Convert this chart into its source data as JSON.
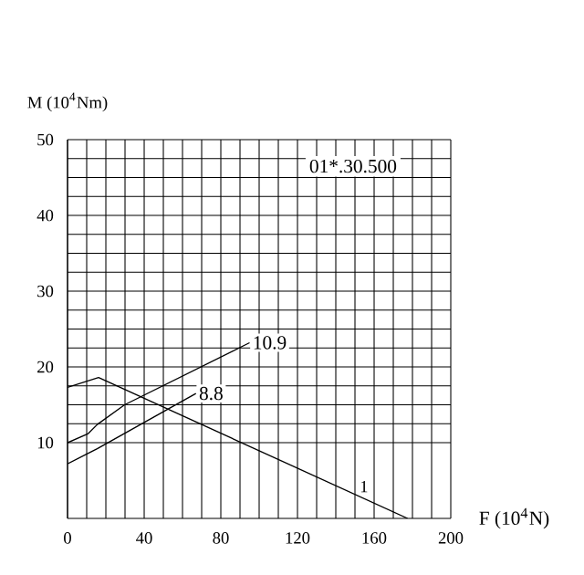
{
  "chart_data": {
    "type": "line",
    "xlabel": "F (10$^{4}$N)",
    "ylabel": "M (10$^{4}$Nm)",
    "annotations": [
      "01*.30.500"
    ],
    "xlim": [
      0,
      200
    ],
    "ylim": [
      0,
      50
    ],
    "xticks": [
      0,
      40,
      80,
      120,
      160,
      200
    ],
    "yticks": [
      10,
      20,
      30,
      40,
      50
    ],
    "grid": true,
    "legend": false,
    "marker": "none",
    "line_style": "solid",
    "series": [
      {
        "name": "10.9",
        "color": "#000000",
        "x": [
          0,
          10.8,
          15.5,
          29.8,
          95
        ],
        "values": [
          10,
          11.2,
          12.4,
          15.0,
          23.2
        ]
      },
      {
        "name": "8.8",
        "color": "#000000",
        "x": [
          0,
          10.8,
          15.5,
          67
        ],
        "values": [
          7.2,
          8.6,
          9.2,
          16.5
        ]
      },
      {
        "name": "1",
        "color": "#000000",
        "x": [
          0,
          16.2,
          177.5
        ],
        "values": [
          17.3,
          18.6,
          0
        ]
      }
    ]
  }
}
